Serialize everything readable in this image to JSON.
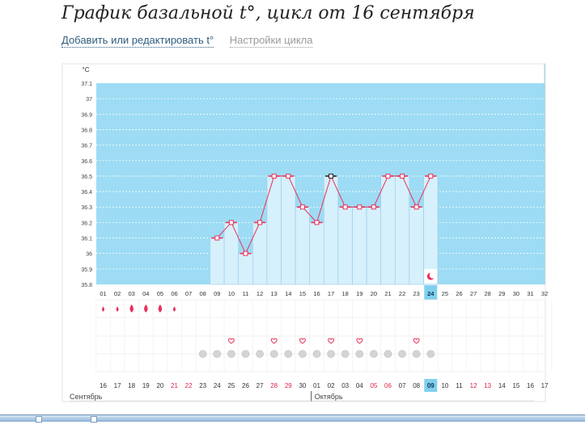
{
  "title": "График базальной t°, цикл от 16 сентября",
  "links": {
    "edit": "Добавить или редактировать t°",
    "settings": "Настройки цикла"
  },
  "chart_data": {
    "type": "line",
    "y_unit": "°C",
    "ylim": [
      35.8,
      37.1
    ],
    "y_ticks": [
      "37.1",
      "37",
      "36.9",
      "36.8",
      "36.7",
      "36.6",
      "36.5",
      "36.4",
      "36.3",
      "36.2",
      "36.1",
      "36",
      "35.9",
      "35.8"
    ],
    "cycle_days": [
      "01",
      "02",
      "03",
      "04",
      "05",
      "06",
      "07",
      "08",
      "09",
      "10",
      "11",
      "12",
      "13",
      "14",
      "15",
      "16",
      "17",
      "18",
      "19",
      "20",
      "21",
      "22",
      "23",
      "24",
      "25",
      "26",
      "27",
      "28",
      "29",
      "30",
      "31",
      "32"
    ],
    "dates": [
      "16",
      "17",
      "18",
      "19",
      "20",
      "21",
      "22",
      "23",
      "24",
      "25",
      "26",
      "27",
      "28",
      "29",
      "30",
      "01",
      "02",
      "03",
      "04",
      "05",
      "06",
      "07",
      "08",
      "09",
      "10",
      "11",
      "12",
      "13",
      "14",
      "15",
      "16",
      "17"
    ],
    "red_dates": [
      5,
      6,
      12,
      13,
      19,
      20,
      26,
      27
    ],
    "today_index": 23,
    "months": [
      "Сентябрь",
      "Октябрь"
    ],
    "series": [
      {
        "values": [
          null,
          null,
          null,
          null,
          null,
          null,
          null,
          null,
          36.1,
          36.2,
          36.0,
          36.2,
          36.5,
          36.5,
          36.3,
          36.2,
          36.5,
          36.3,
          36.3,
          36.3,
          36.5,
          36.5,
          36.3,
          36.5,
          null,
          null,
          null,
          null,
          null,
          null,
          null,
          null
        ]
      }
    ],
    "marker_flags": [
      false,
      false,
      false,
      false,
      false,
      false,
      false,
      false,
      false,
      false,
      false,
      false,
      false,
      false,
      false,
      false,
      true,
      false,
      false,
      false,
      false,
      false,
      false,
      false,
      false,
      false,
      false,
      false,
      false,
      false,
      false,
      false
    ],
    "moon_day_index": 23,
    "drop_days": [
      0,
      1,
      2,
      3,
      4,
      5
    ],
    "big_drop_days": [
      2,
      3,
      4
    ],
    "heart_days": [
      9,
      12,
      14,
      16,
      18,
      22
    ],
    "dot_days": [
      7,
      8,
      9,
      10,
      11,
      12,
      13,
      14,
      15,
      16,
      17,
      18,
      19,
      20,
      21,
      22,
      23
    ],
    "colors": {
      "background_band": "#9ddcf4",
      "bar_fill": "#d6f0fc",
      "bar_stroke": "#98c9e4",
      "line": "#e8325c",
      "gridline": "#ffffff",
      "today": "#7fd0ee",
      "red_text": "#e0264c"
    },
    "grid": true
  }
}
